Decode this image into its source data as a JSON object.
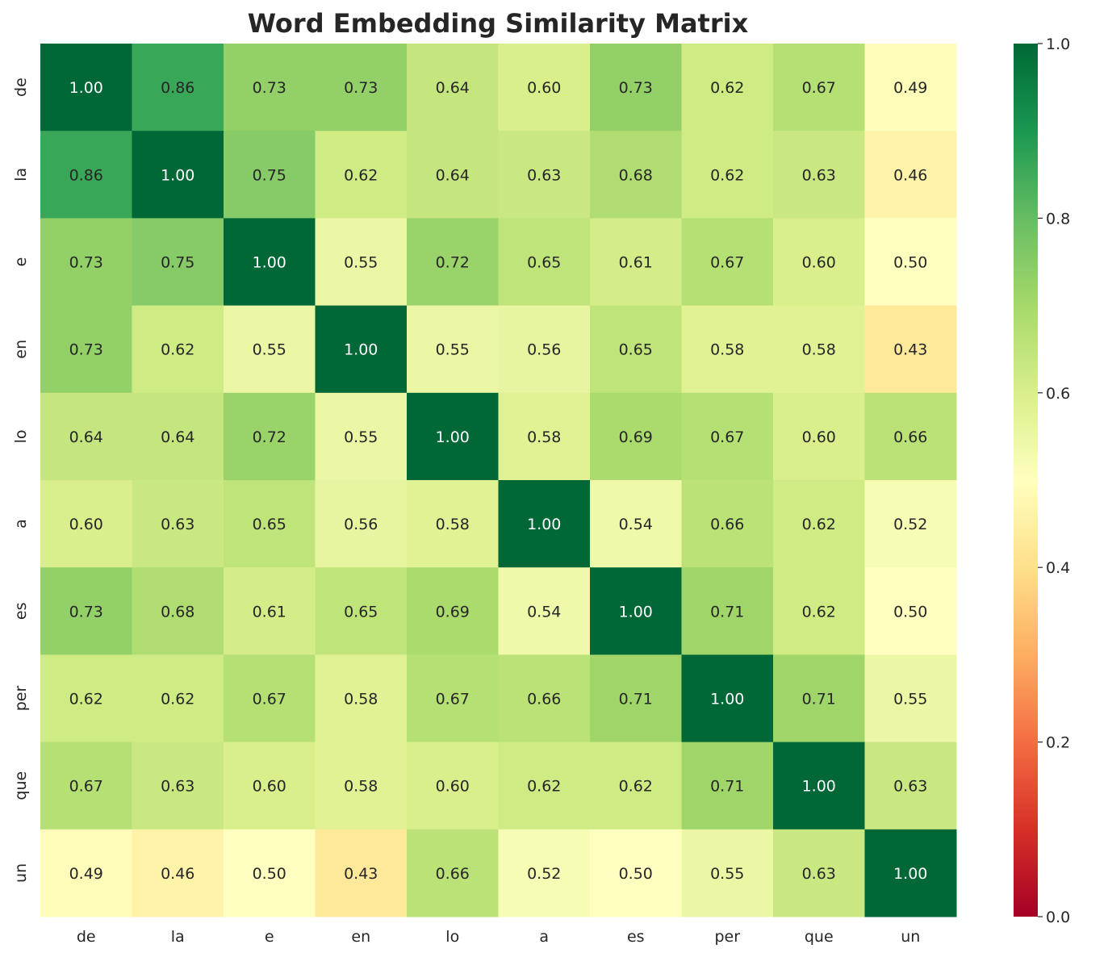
{
  "chart_data": {
    "type": "heatmap",
    "title": "Word Embedding Similarity Matrix",
    "xlabel": "",
    "ylabel": "",
    "x_categories": [
      "de",
      "la",
      "e",
      "en",
      "lo",
      "a",
      "es",
      "per",
      "que",
      "un"
    ],
    "y_categories": [
      "de",
      "la",
      "e",
      "en",
      "lo",
      "a",
      "es",
      "per",
      "que",
      "un"
    ],
    "values": [
      [
        1.0,
        0.86,
        0.73,
        0.73,
        0.64,
        0.6,
        0.73,
        0.62,
        0.67,
        0.49
      ],
      [
        0.86,
        1.0,
        0.75,
        0.62,
        0.64,
        0.63,
        0.68,
        0.62,
        0.63,
        0.46
      ],
      [
        0.73,
        0.75,
        1.0,
        0.55,
        0.72,
        0.65,
        0.61,
        0.67,
        0.6,
        0.5
      ],
      [
        0.73,
        0.62,
        0.55,
        1.0,
        0.55,
        0.56,
        0.65,
        0.58,
        0.58,
        0.43
      ],
      [
        0.64,
        0.64,
        0.72,
        0.55,
        1.0,
        0.58,
        0.69,
        0.67,
        0.6,
        0.66
      ],
      [
        0.6,
        0.63,
        0.65,
        0.56,
        0.58,
        1.0,
        0.54,
        0.66,
        0.62,
        0.52
      ],
      [
        0.73,
        0.68,
        0.61,
        0.65,
        0.69,
        0.54,
        1.0,
        0.71,
        0.62,
        0.5
      ],
      [
        0.62,
        0.62,
        0.67,
        0.58,
        0.67,
        0.66,
        0.71,
        1.0,
        0.71,
        0.55
      ],
      [
        0.67,
        0.63,
        0.6,
        0.58,
        0.6,
        0.62,
        0.62,
        0.71,
        1.0,
        0.63
      ],
      [
        0.49,
        0.46,
        0.5,
        0.43,
        0.66,
        0.52,
        0.5,
        0.55,
        0.63,
        1.0
      ]
    ],
    "colormap": "RdYlGn",
    "vmin": 0.0,
    "vmax": 1.0,
    "value_format": "0.00",
    "colorbar": {
      "position": "right",
      "ticks": [
        "0.0",
        "0.2",
        "0.4",
        "0.6",
        "0.8",
        "1.0"
      ]
    },
    "grid": false
  }
}
